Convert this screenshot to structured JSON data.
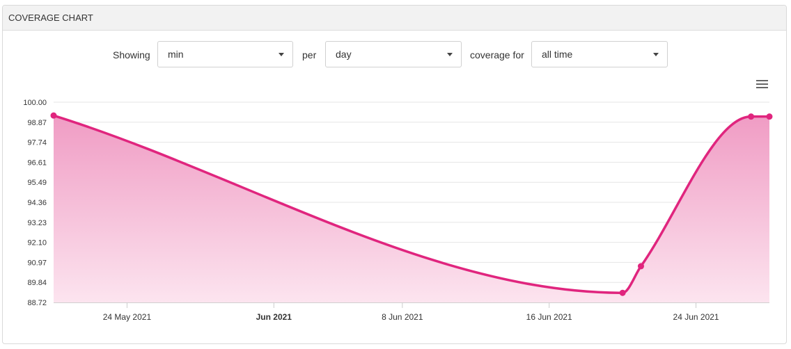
{
  "panel": {
    "title": "COVERAGE CHART"
  },
  "controls": {
    "showing_label": "Showing",
    "showing_value": "min",
    "per_label": "per",
    "per_value": "day",
    "coverage_label": "coverage for",
    "coverage_value": "all time"
  },
  "colors": {
    "line": "#e0257e",
    "fill_top": "#f09cc4",
    "fill_bottom": "#fce4ef",
    "grid": "#e6e6e6"
  },
  "chart_data": {
    "type": "area",
    "title": "",
    "xlabel": "",
    "ylabel": "",
    "ylim": [
      88.72,
      100.0
    ],
    "y_ticks": [
      "100.00",
      "98.87",
      "97.74",
      "96.61",
      "95.49",
      "94.36",
      "93.23",
      "92.10",
      "90.97",
      "89.84",
      "88.72"
    ],
    "x_range": [
      "2021-05-20",
      "2021-06-28"
    ],
    "x_ticks": [
      {
        "date": "2021-05-24",
        "label": "24 May 2021",
        "bold": false
      },
      {
        "date": "2021-06-01",
        "label": "Jun 2021",
        "bold": true
      },
      {
        "date": "2021-06-08",
        "label": "8 Jun 2021",
        "bold": false
      },
      {
        "date": "2021-06-16",
        "label": "16 Jun 2021",
        "bold": false
      },
      {
        "date": "2021-06-24",
        "label": "24 Jun 2021",
        "bold": false
      }
    ],
    "grid": true,
    "series": [
      {
        "points": [
          {
            "x": "2021-05-20",
            "y": 99.25
          },
          {
            "x": "2021-06-20",
            "y": 89.26
          },
          {
            "x": "2021-06-21",
            "y": 90.76
          },
          {
            "x": "2021-06-27",
            "y": 99.19
          },
          {
            "x": "2021-06-28",
            "y": 99.19
          }
        ]
      }
    ]
  }
}
